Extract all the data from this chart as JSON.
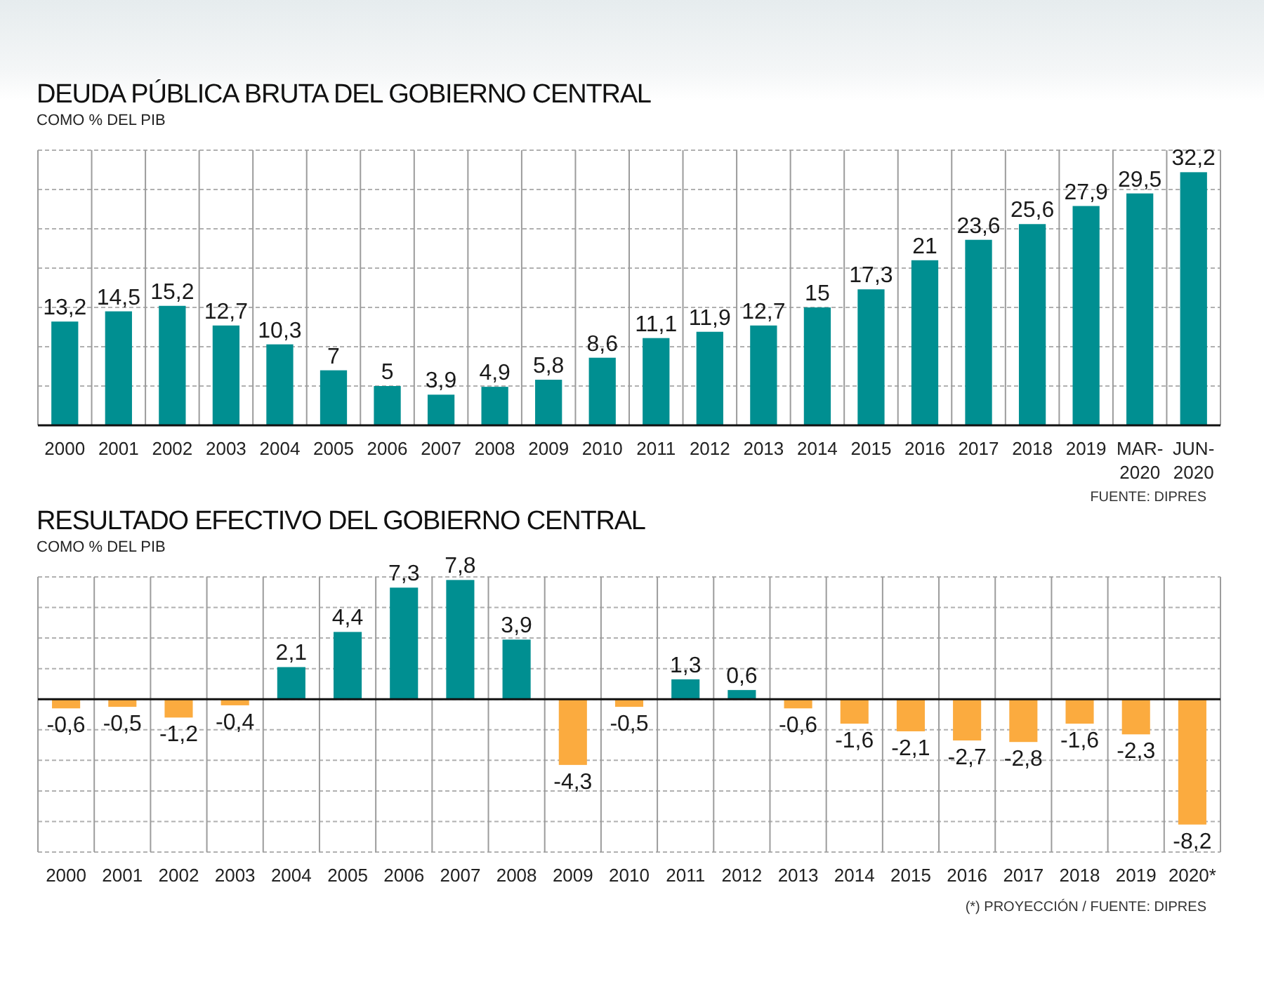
{
  "chart_data": [
    {
      "type": "bar",
      "title": "DEUDA PÚBLICA BRUTA DEL GOBIERNO CENTRAL",
      "subtitle": "COMO % DEL PIB",
      "categories": [
        "2000",
        "2001",
        "2002",
        "2003",
        "2004",
        "2005",
        "2006",
        "2007",
        "2008",
        "2009",
        "2010",
        "2011",
        "2012",
        "2013",
        "2014",
        "2015",
        "2016",
        "2017",
        "2018",
        "2019",
        "MAR-2020",
        "JUN-2020"
      ],
      "values": [
        13.2,
        14.5,
        15.2,
        12.7,
        10.3,
        7,
        5,
        3.9,
        4.9,
        5.8,
        8.6,
        11.1,
        11.9,
        12.7,
        15,
        17.3,
        21,
        23.6,
        25.6,
        27.9,
        29.5,
        32.2
      ],
      "color": "#008f91",
      "value_labels": [
        "13,2",
        "14,5",
        "15,2",
        "12,7",
        "10,3",
        "7",
        "5",
        "3,9",
        "4,9",
        "5,8",
        "8,6",
        "11,1",
        "11,9",
        "12,7",
        "15",
        "17,3",
        "21",
        "23,6",
        "25,6",
        "27,9",
        "29,5",
        "32,2"
      ],
      "ylim": [
        0,
        35
      ],
      "yticks": [
        {
          "value": 0,
          "label": null
        },
        {
          "value": 5,
          "label": null
        },
        {
          "value": 10,
          "label": null
        },
        {
          "value": 15,
          "label": null
        },
        {
          "value": 20,
          "label": null
        },
        {
          "value": 25,
          "label": null
        },
        {
          "value": 30,
          "label": null
        },
        {
          "value": 35,
          "label": null
        }
      ],
      "tick_labels": "x",
      "grid": true,
      "annotations": [
        "FUENTE: DIPRES"
      ]
    },
    {
      "type": "bar",
      "title": "RESULTADO EFECTIVO DEL GOBIERNO CENTRAL",
      "subtitle": "COMO % DEL PIB",
      "categories": [
        "2000",
        "2001",
        "2002",
        "2003",
        "2004",
        "2005",
        "2006",
        "2007",
        "2008",
        "2009",
        "2010",
        "2011",
        "2012",
        "2013",
        "2014",
        "2015",
        "2016",
        "2017",
        "2018",
        "2019",
        "2020*"
      ],
      "values": [
        -0.6,
        -0.5,
        -1.2,
        -0.4,
        2.1,
        4.4,
        7.3,
        7.8,
        3.9,
        -4.3,
        -0.5,
        1.3,
        0.6,
        -0.6,
        -1.6,
        -2.1,
        -2.7,
        -2.8,
        -1.6,
        -2.3,
        -8.2
      ],
      "colors": [
        "#fbab3f",
        "#fbab3f",
        "#fbab3f",
        "#fbab3f",
        "#008f91",
        "#008f91",
        "#008f91",
        "#008f91",
        "#008f91",
        "#fbab3f",
        "#fbab3f",
        "#008f91",
        "#008f91",
        "#fbab3f",
        "#fbab3f",
        "#fbab3f",
        "#fbab3f",
        "#fbab3f",
        "#fbab3f",
        "#fbab3f",
        "#fbab3f"
      ],
      "value_labels": [
        "-0,6",
        "-0,5",
        "-1,2",
        "-0,4",
        "2,1",
        "4,4",
        "7,3",
        "7,8",
        "3,9",
        "-4,3",
        "-0,5",
        "1,3",
        "0,6",
        "-0,6",
        "-1,6",
        "-2,1",
        "-2,7",
        "-2,8",
        "-1,6",
        "-2,3",
        "-8,2"
      ],
      "ylim": [
        -10,
        8
      ],
      "yticks": [
        {
          "value": -10,
          "label": null
        },
        {
          "value": -8,
          "label": null
        },
        {
          "value": -6,
          "label": null
        },
        {
          "value": -4,
          "label": null
        },
        {
          "value": -2,
          "label": null
        },
        {
          "value": 0,
          "label": null
        },
        {
          "value": 2,
          "label": null
        },
        {
          "value": 4,
          "label": null
        },
        {
          "value": 6,
          "label": null
        },
        {
          "value": 8,
          "label": null
        }
      ],
      "tick_labels": "x",
      "grid": true,
      "annotations": [
        "(*) PROYECCIÓN / FUENTE: DIPRES"
      ]
    }
  ]
}
